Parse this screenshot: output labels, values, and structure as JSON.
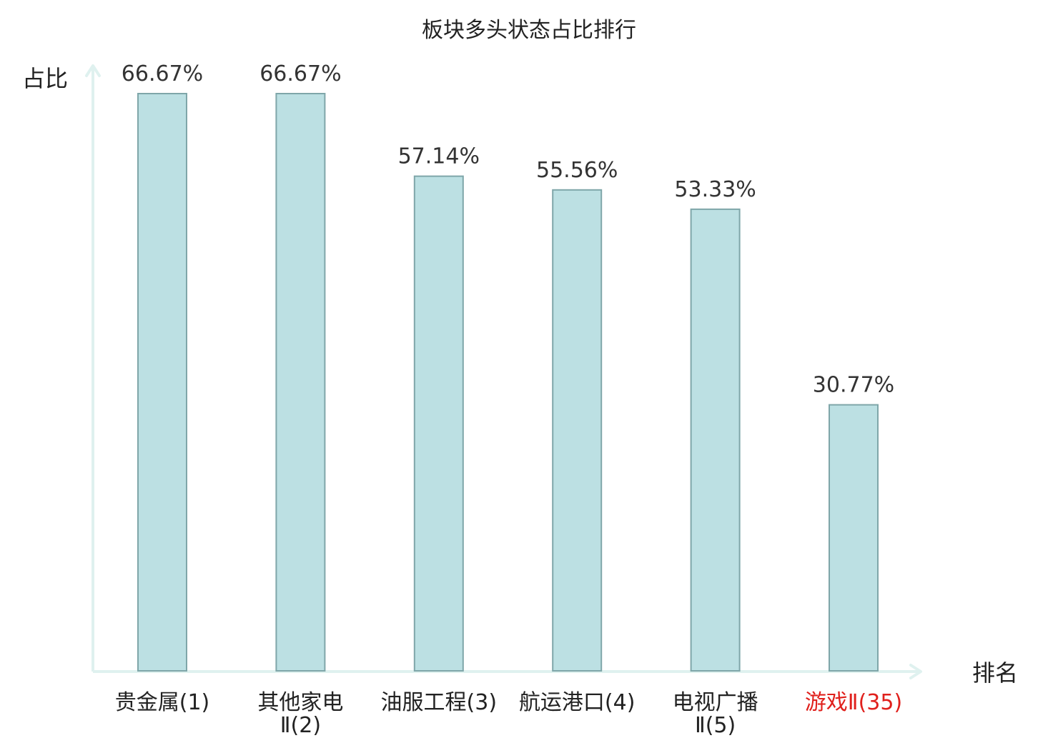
{
  "chart_data": {
    "type": "bar",
    "title": "板块多头状态占比排行",
    "ylabel": "占比",
    "xlabel": "排名",
    "ylim": [
      0,
      70
    ],
    "grid": false,
    "legend": "none",
    "categories": [
      {
        "name": "贵金属",
        "rank": "(1)",
        "lines": [
          "贵金属(1)"
        ],
        "highlight": false
      },
      {
        "name": "其他家电Ⅱ",
        "rank": "(2)",
        "lines": [
          "其他家电",
          "Ⅱ(2)"
        ],
        "highlight": false
      },
      {
        "name": "油服工程",
        "rank": "(3)",
        "lines": [
          "油服工程(3)"
        ],
        "highlight": false
      },
      {
        "name": "航运港口",
        "rank": "(4)",
        "lines": [
          "航运港口(4)"
        ],
        "highlight": false
      },
      {
        "name": "电视广播Ⅱ",
        "rank": "(5)",
        "lines": [
          "电视广播",
          "Ⅱ(5)"
        ],
        "highlight": false
      },
      {
        "name": "游戏Ⅱ",
        "rank": "(35)",
        "lines": [
          "游戏Ⅱ(35)"
        ],
        "highlight": true
      }
    ],
    "values": [
      66.67,
      66.67,
      57.14,
      55.56,
      53.33,
      30.77
    ],
    "value_labels": [
      "66.67%",
      "66.67%",
      "57.14%",
      "55.56%",
      "53.33%",
      "30.77%"
    ],
    "colors": {
      "bar_fill": "#bce0e3",
      "bar_stroke": "#7fa6a9",
      "axis": "#dff1ef",
      "label_text": "#222222",
      "highlight_text": "#e0201c"
    }
  }
}
